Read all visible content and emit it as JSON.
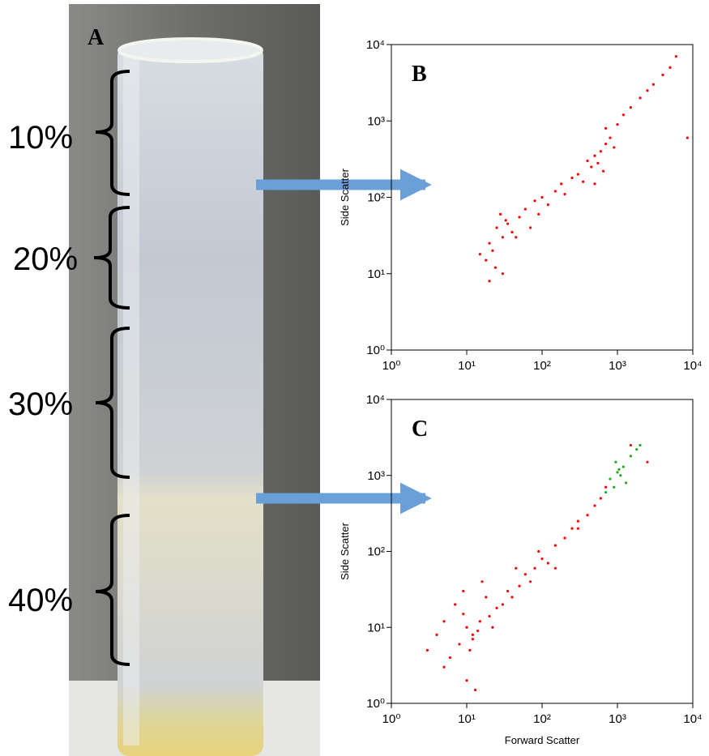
{
  "photo": {
    "label": "A",
    "fractions": [
      "10%",
      "20%",
      "30%",
      "40%"
    ]
  },
  "chart_data": [
    {
      "type": "scatter",
      "label": "B",
      "ylabel": "Side Scatter",
      "log": true,
      "xlim": [
        1,
        10000
      ],
      "ylim": [
        1,
        10000
      ],
      "xticks": [
        {
          "value": 1,
          "label": "10⁰"
        },
        {
          "value": 10,
          "label": "10¹"
        },
        {
          "value": 100,
          "label": "10²"
        },
        {
          "value": 1000,
          "label": "10³"
        },
        {
          "value": 10000,
          "label": "10⁴"
        }
      ],
      "yticks": [
        {
          "value": 1,
          "label": "10⁰"
        },
        {
          "value": 10,
          "label": "10¹"
        },
        {
          "value": 100,
          "label": "10²"
        },
        {
          "value": 1000,
          "label": "10³"
        },
        {
          "value": 10000,
          "label": "10⁴"
        }
      ],
      "series": [
        {
          "color": "#ff0000",
          "x": [
            20,
            25,
            30,
            18,
            35,
            22,
            28,
            40,
            15,
            24,
            33,
            45,
            50,
            60,
            70,
            80,
            90,
            100,
            120,
            150,
            180,
            200,
            250,
            300,
            350,
            400,
            450,
            500,
            550,
            600,
            650,
            700,
            800,
            900,
            1000,
            1200,
            1500,
            2000,
            2500,
            3000,
            4000,
            5000,
            6000,
            20,
            30,
            500,
            700,
            8500
          ],
          "values": [
            25,
            40,
            30,
            15,
            45,
            20,
            60,
            35,
            18,
            12,
            50,
            30,
            55,
            70,
            40,
            90,
            60,
            100,
            80,
            120,
            150,
            110,
            180,
            200,
            160,
            300,
            250,
            350,
            280,
            400,
            220,
            500,
            600,
            450,
            900,
            1200,
            1500,
            2000,
            2500,
            3000,
            4000,
            5000,
            7000,
            8,
            10,
            150,
            800,
            600
          ]
        }
      ]
    },
    {
      "type": "scatter",
      "label": "C",
      "xlabel": "Forward Scatter",
      "ylabel": "Side Scatter",
      "log": true,
      "xlim": [
        1,
        10000
      ],
      "ylim": [
        1,
        10000
      ],
      "xticks": [
        {
          "value": 1,
          "label": "10⁰"
        },
        {
          "value": 10,
          "label": "10¹"
        },
        {
          "value": 100,
          "label": "10²"
        },
        {
          "value": 1000,
          "label": "10³"
        },
        {
          "value": 10000,
          "label": "10⁴"
        }
      ],
      "yticks": [
        {
          "value": 1,
          "label": "10⁰"
        },
        {
          "value": 10,
          "label": "10¹"
        },
        {
          "value": 100,
          "label": "10²"
        },
        {
          "value": 1000,
          "label": "10³"
        },
        {
          "value": 10000,
          "label": "10⁴"
        }
      ],
      "series": [
        {
          "color": "#ff0000",
          "x": [
            8,
            10,
            12,
            6,
            9,
            15,
            11,
            7,
            14,
            20,
            5,
            18,
            25,
            30,
            35,
            40,
            50,
            60,
            80,
            100,
            120,
            150,
            200,
            250,
            300,
            400,
            500,
            600,
            700,
            10,
            13,
            9,
            16,
            22,
            4,
            3,
            45,
            70,
            90,
            150,
            300,
            1500,
            2500,
            5,
            12
          ],
          "values": [
            6,
            10,
            8,
            4,
            15,
            12,
            5,
            20,
            9,
            14,
            3,
            25,
            18,
            20,
            30,
            25,
            35,
            50,
            60,
            80,
            70,
            120,
            150,
            200,
            250,
            300,
            400,
            500,
            700,
            2,
            1.5,
            30,
            40,
            10,
            8,
            5,
            60,
            40,
            100,
            60,
            200,
            2500,
            1500,
            12,
            7
          ]
        },
        {
          "color": "#22aa22",
          "x": [
            800,
            1000,
            1200,
            900,
            1100,
            1500,
            1300,
            950,
            1800,
            700,
            2000,
            1050
          ],
          "values": [
            900,
            1100,
            1300,
            700,
            1000,
            1800,
            800,
            1500,
            2200,
            600,
            2500,
            1200
          ]
        }
      ]
    }
  ]
}
